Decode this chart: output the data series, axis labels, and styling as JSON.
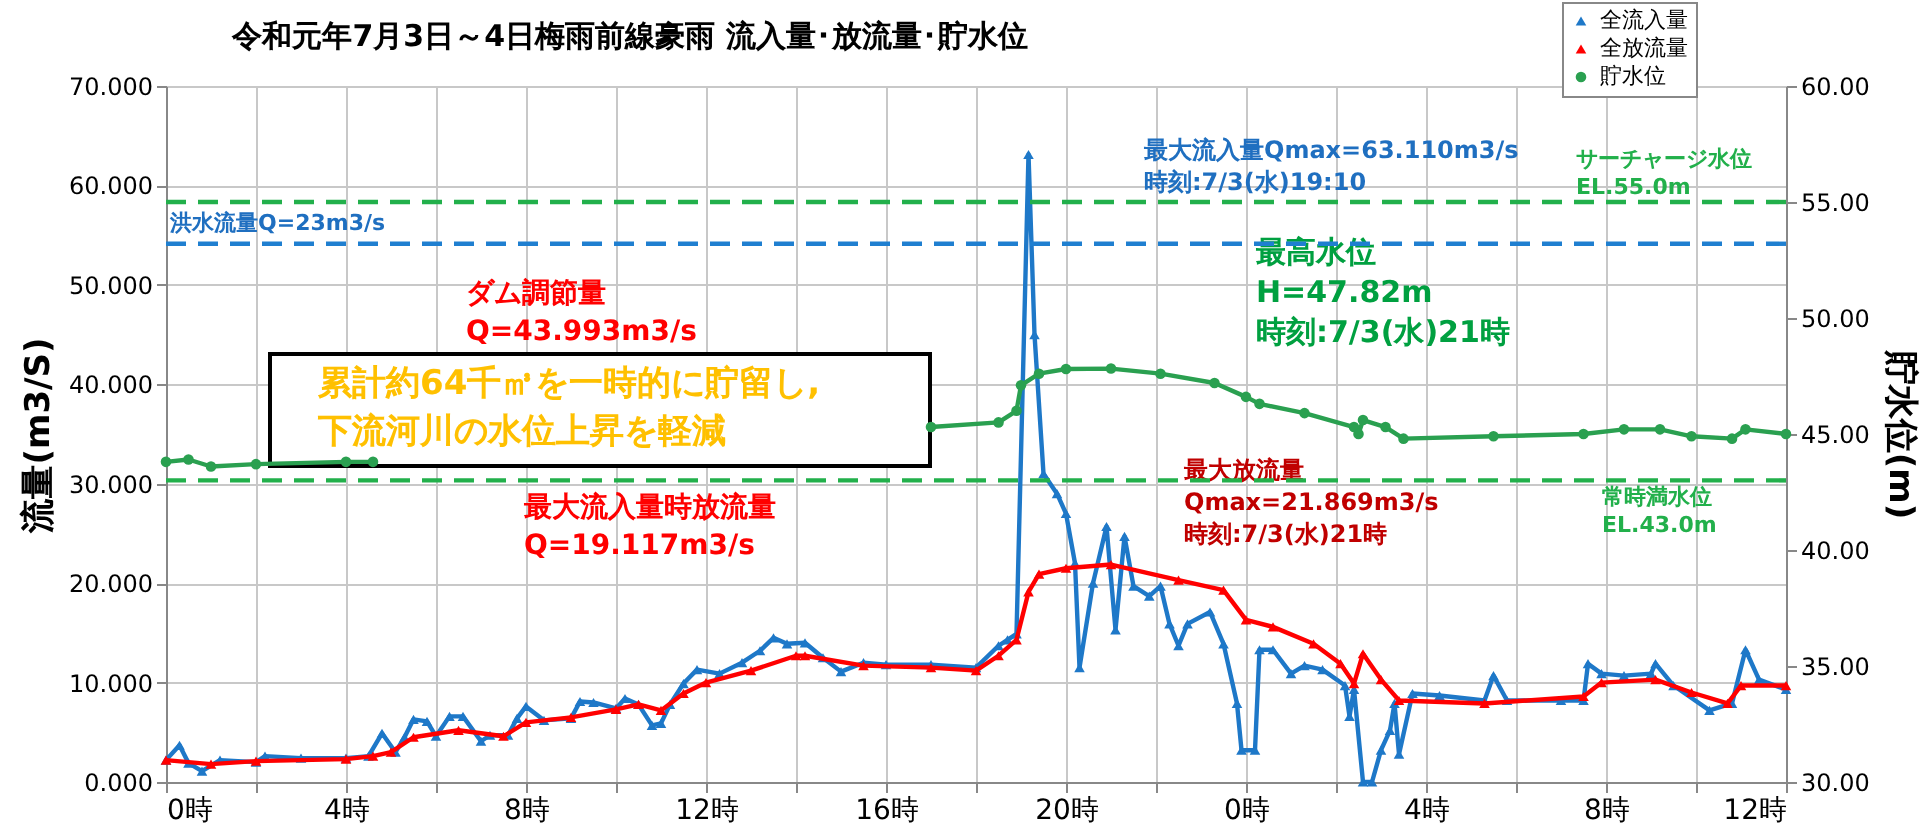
{
  "chart_data": {
    "type": "line",
    "title": "令和元年7月3日～4日梅雨前線豪雨 流入量･放流量･貯水位",
    "ylabel": "流量(m3/S)",
    "y2label": "貯水位(m)",
    "xlim": [
      "--07-03T00:00",
      "--07-04T12:00"
    ],
    "xticks": [
      {
        "value": "--07-03T00:00",
        "label": "0時"
      },
      {
        "value": "--07-03T02:00",
        "label": null
      },
      {
        "value": "--07-03T04:00",
        "label": "4時"
      },
      {
        "value": "--07-03T06:00",
        "label": null
      },
      {
        "value": "--07-03T08:00",
        "label": "8時"
      },
      {
        "value": "--07-03T10:00",
        "label": null
      },
      {
        "value": "--07-03T12:00",
        "label": "12時"
      },
      {
        "value": "--07-03T14:00",
        "label": null
      },
      {
        "value": "--07-03T16:00",
        "label": "16時"
      },
      {
        "value": "--07-03T18:00",
        "label": null
      },
      {
        "value": "--07-03T20:00",
        "label": "20時"
      },
      {
        "value": "--07-03T22:00",
        "label": null
      },
      {
        "value": "--07-04T00:00",
        "label": "0時"
      },
      {
        "value": "--07-04T02:00",
        "label": null
      },
      {
        "value": "--07-04T04:00",
        "label": "4時"
      },
      {
        "value": "--07-04T06:00",
        "label": null
      },
      {
        "value": "--07-04T08:00",
        "label": "8時"
      },
      {
        "value": "--07-04T10:00",
        "label": null
      },
      {
        "value": "--07-04T12:00",
        "label": "12時"
      }
    ],
    "ylim": [
      0,
      70
    ],
    "yticks": [
      {
        "value": 0,
        "label": "0.000"
      },
      {
        "value": 10,
        "label": "10.000"
      },
      {
        "value": 20,
        "label": "20.000"
      },
      {
        "value": 30,
        "label": "30.000"
      },
      {
        "value": 40,
        "label": "40.000"
      },
      {
        "value": 50,
        "label": "50.000"
      },
      {
        "value": 60,
        "label": "60.000"
      },
      {
        "value": 70,
        "label": "70.000"
      }
    ],
    "y2lim": [
      30,
      60
    ],
    "y2ticks": [
      {
        "value": 30,
        "label": "30.00"
      },
      {
        "value": 35,
        "label": "35.00"
      },
      {
        "value": 40,
        "label": "40.00"
      },
      {
        "value": 45,
        "label": "45.00"
      },
      {
        "value": 50,
        "label": "50.00"
      },
      {
        "value": 55,
        "label": "55.00"
      },
      {
        "value": 60,
        "label": "60.00"
      }
    ],
    "grid": true,
    "legend": "top right",
    "marker": "triangle",
    "line_style": "solid",
    "series": [
      {
        "name": "全流入量",
        "color": "#1e78c8",
        "x": [
          "--07-03T00:00",
          "--07-03T00:18",
          "--07-03T00:30",
          "--07-03T00:48",
          "--07-03T01:12",
          "--07-03T02:00",
          "--07-03T02:12",
          "--07-03T03:00",
          "--07-03T04:00",
          "--07-03T04:30",
          "--07-03T04:48",
          "--07-03T05:06",
          "--07-03T05:18",
          "--07-03T05:30",
          "--07-03T05:48",
          "--07-03T06:00",
          "--07-03T06:18",
          "--07-03T06:36",
          "--07-03T07:00",
          "--07-03T07:12",
          "--07-03T07:36",
          "--07-03T07:48",
          "--07-03T08:00",
          "--07-03T08:24",
          "--07-03T09:00",
          "--07-03T09:12",
          "--07-03T09:30",
          "--07-03T10:00",
          "--07-03T10:12",
          "--07-03T10:30",
          "--07-03T10:48",
          "--07-03T11:00",
          "--07-03T11:12",
          "--07-03T11:30",
          "--07-03T11:48",
          "--07-03T12:18",
          "--07-03T12:48",
          "--07-03T13:12",
          "--07-03T13:30",
          "--07-03T13:48",
          "--07-03T14:12",
          "--07-03T14:36",
          "--07-03T15:00",
          "--07-03T15:30",
          "--07-03T16:00",
          "--07-03T17:00",
          "--07-03T18:00",
          "--07-03T18:30",
          "--07-03T18:42",
          "--07-03T18:54",
          "--07-03T19:10",
          "--07-03T19:18",
          "--07-03T19:30",
          "--07-03T19:48",
          "--07-03T20:00",
          "--07-03T20:12",
          "--07-03T20:18",
          "--07-03T20:36",
          "--07-03T20:54",
          "--07-03T21:06",
          "--07-03T21:18",
          "--07-03T21:30",
          "--07-03T21:51",
          "--07-03T22:06",
          "--07-03T22:18",
          "--07-03T22:30",
          "--07-03T22:42",
          "--07-03T23:12",
          "--07-03T23:30",
          "--07-03T23:48",
          "--07-03T23:54",
          "--07-04T00:12",
          "--07-04T00:18",
          "--07-04T00:36",
          "--07-04T01:00",
          "--07-04T01:18",
          "--07-04T01:42",
          "--07-04T02:12",
          "--07-04T02:18",
          "--07-04T02:24",
          "--07-04T02:36",
          "--07-04T02:48",
          "--07-04T03:00",
          "--07-04T03:12",
          "--07-04T03:18",
          "--07-04T03:24",
          "--07-04T03:42",
          "--07-04T04:18",
          "--07-04T05:18",
          "--07-04T05:30",
          "--07-04T05:48",
          "--07-04T07:00",
          "--07-04T07:30",
          "--07-04T07:36",
          "--07-04T07:54",
          "--07-04T08:24",
          "--07-04T09:00",
          "--07-04T09:06",
          "--07-04T09:30",
          "--07-04T10:18",
          "--07-04T10:48",
          "--07-04T11:06",
          "--07-04T11:24",
          "--07-04T12:00"
        ],
        "values": [
          2.2,
          3.7,
          1.9,
          1.1,
          2.2,
          2.0,
          2.6,
          2.4,
          2.4,
          2.6,
          4.9,
          3.0,
          4.5,
          6.3,
          6.1,
          4.6,
          6.6,
          6.6,
          4.1,
          4.7,
          4.7,
          6.4,
          7.6,
          6.2,
          6.4,
          8.1,
          8.0,
          7.4,
          8.4,
          7.8,
          5.7,
          5.9,
          7.8,
          9.9,
          11.3,
          10.9,
          12.0,
          13.2,
          14.5,
          13.9,
          14.0,
          12.5,
          11.1,
          12.0,
          11.8,
          11.8,
          11.5,
          13.7,
          14.3,
          14.9,
          63.11,
          45,
          31,
          29,
          27,
          22,
          11.5,
          20.0,
          25.7,
          15.3,
          24.7,
          19.7,
          18.7,
          19.7,
          15.9,
          13.7,
          15.9,
          17.1,
          13.9,
          7.9,
          3.2,
          3.2,
          13.3,
          13.3,
          10.9,
          11.7,
          11.3,
          9.7,
          6.6,
          9.3,
          0,
          0,
          3.2,
          5.2,
          7.9,
          2.8,
          8.9,
          8.7,
          8.2,
          10.7,
          8.2,
          8.2,
          8.2,
          11.9,
          10.9,
          10.7,
          10.9,
          11.9,
          9.7,
          7.2,
          7.9,
          13.3,
          10.3,
          9.3
        ]
      },
      {
        "name": "全放流量",
        "color": "#ff0000",
        "x": [
          "--07-03T00:00",
          "--07-03T01:00",
          "--07-03T02:00",
          "--07-03T04:00",
          "--07-03T04:36",
          "--07-03T05:00",
          "--07-03T05:30",
          "--07-03T06:30",
          "--07-03T07:30",
          "--07-03T08:00",
          "--07-03T09:00",
          "--07-03T10:00",
          "--07-03T10:30",
          "--07-03T11:00",
          "--07-03T11:30",
          "--07-03T12:00",
          "--07-03T13:00",
          "--07-03T14:00",
          "--07-03T14:12",
          "--07-03T15:30",
          "--07-03T17:00",
          "--07-03T18:00",
          "--07-03T18:30",
          "--07-03T18:54",
          "--07-03T19:10",
          "--07-03T19:24",
          "--07-03T20:00",
          "--07-03T21:00",
          "--07-03T22:30",
          "--07-03T23:30",
          "--07-04T00:00",
          "--07-04T00:36",
          "--07-04T01:30",
          "--07-04T02:06",
          "--07-04T02:24",
          "--07-04T02:36",
          "--07-04T03:00",
          "--07-04T03:24",
          "--07-04T05:18",
          "--07-04T07:30",
          "--07-04T07:54",
          "--07-04T09:06",
          "--07-04T09:54",
          "--07-04T10:42",
          "--07-04T11:00",
          "--07-04T12:00"
        ],
        "values": [
          2.2,
          1.8,
          2.1,
          2.3,
          2.6,
          3.0,
          4.5,
          5.2,
          4.6,
          6.0,
          6.5,
          7.3,
          7.8,
          7.2,
          8.9,
          10.0,
          11.2,
          12.7,
          12.7,
          11.7,
          11.5,
          11.2,
          12.7,
          14.3,
          19.117,
          20.9,
          21.5,
          21.869,
          20.3,
          19.3,
          16.3,
          15.6,
          13.9,
          11.9,
          9.9,
          12.9,
          10.3,
          8.2,
          7.9,
          8.6,
          10.0,
          10.3,
          9.0,
          7.9,
          9.7,
          9.7
        ]
      },
      {
        "name": "貯水位",
        "color": "#2aa050",
        "axis": "y2",
        "marker": "circle",
        "x": [
          "--07-03T00:00",
          "--07-03T00:30",
          "--07-03T01:00",
          "--07-03T02:00",
          "--07-03T04:00",
          "--07-03T04:36",
          "--07-03T10:00",
          "--07-03T17:00",
          "--07-03T18:30",
          "--07-03T18:54",
          "--07-03T19:00",
          "--07-03T19:24",
          "--07-03T20:00",
          "--07-03T21:00",
          "--07-03T22:06",
          "--07-03T23:18",
          "--07-04T00:00",
          "--07-04T00:18",
          "--07-04T01:18",
          "--07-04T02:24",
          "--07-04T02:30",
          "--07-04T02:36",
          "--07-04T03:06",
          "--07-04T03:30",
          "--07-04T05:30",
          "--07-04T07:30",
          "--07-04T08:24",
          "--07-04T09:12",
          "--07-04T09:54",
          "--07-04T10:48",
          "--07-04T11:06",
          "--07-04T12:00"
        ],
        "values": [
          43.8,
          43.9,
          43.6,
          43.7,
          43.8,
          43.8,
          null,
          45.3,
          45.5,
          46.0,
          47.1,
          47.6,
          47.8,
          47.82,
          47.6,
          47.2,
          46.6,
          46.3,
          45.9,
          45.3,
          45.0,
          45.6,
          45.3,
          44.8,
          44.9,
          45.0,
          45.2,
          45.2,
          44.9,
          44.8,
          45.2,
          45.0
        ]
      }
    ],
    "ref_lines": [
      {
        "axis": "y2",
        "value": 55,
        "label": "サーチャージ水位\nEL.55.0m",
        "color": "#22b04b",
        "line_style": "dashed"
      },
      {
        "axis": "y2",
        "value": 53.2,
        "color": "#1f7fd0",
        "line_style": "dashed"
      },
      {
        "axis": "y2",
        "value": 43,
        "label": "常時満水位\nEL.43.0m",
        "color": "#22b04b",
        "line_style": "dashed"
      }
    ],
    "annotations": [
      "最大流入量Qmax=63.110m3/s\n時刻:7/3(水)19:10",
      "ダム調節量\nQ=43.993m3/s",
      "累計約64千㎥を一時的に貯留し,\n下流河川の水位上昇を軽減",
      "最大流入量時放流量\nQ=19.117m3/s",
      "最大放流量\nQmax=21.869m3/s\n時刻:7/3(水)21時",
      "最高水位\nH=47.82m\n時刻:7/3(水)21時",
      "洪水流量Q=23m3/s"
    ]
  }
}
